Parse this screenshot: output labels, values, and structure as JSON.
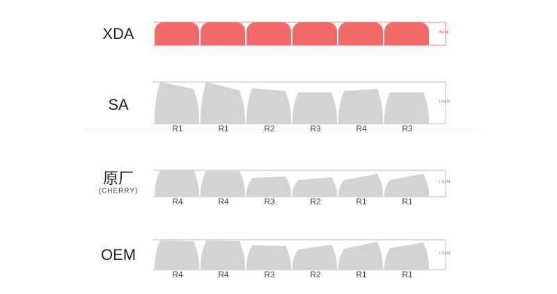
{
  "profiles": [
    {
      "name": "XDA",
      "height": "9MM",
      "rows": []
    },
    {
      "name": "SA",
      "height": "16MM",
      "rows": [
        "R1",
        "R1",
        "R2",
        "R3",
        "R4",
        "R3"
      ]
    },
    {
      "name": "原厂",
      "subname": "(CHERRY)",
      "height": "10MM",
      "rows": [
        "R4",
        "R4",
        "R3",
        "R2",
        "R1",
        "R1"
      ]
    },
    {
      "name": "OEM",
      "height": "12MM",
      "rows": [
        "R4",
        "R4",
        "R3",
        "R2",
        "R1",
        "R1"
      ]
    }
  ]
}
